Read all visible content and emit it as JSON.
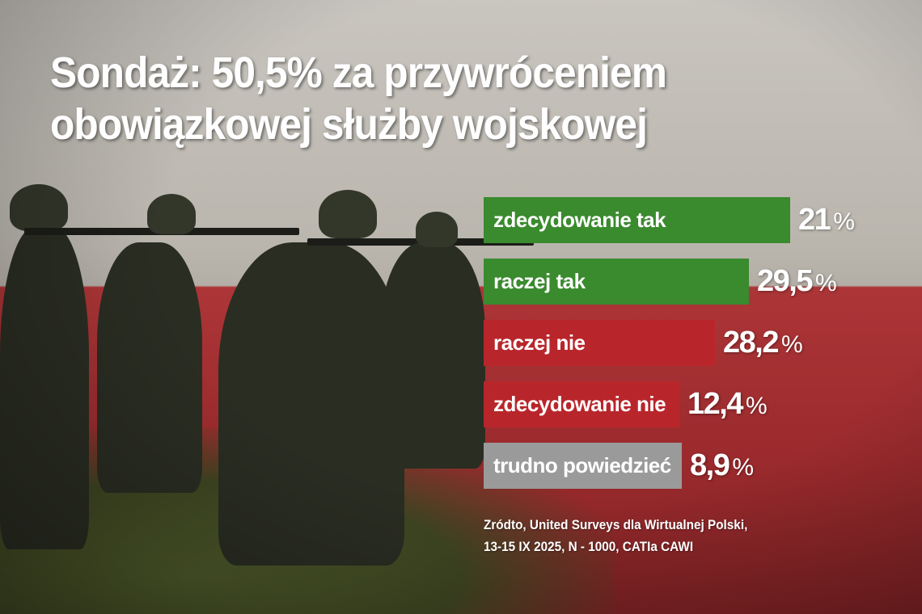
{
  "title": {
    "line1": "Sondaż: 50,5% za przywróceniem",
    "line2": "obowiązkowej służby wojskowej"
  },
  "colors": {
    "yes": "#3a8a2e",
    "no": "#b8262b",
    "unsure": "#9a9a9a",
    "background_top": "#bdb8b0",
    "background_bottom": "#a83030"
  },
  "chart_data": {
    "type": "bar",
    "orientation": "horizontal",
    "categories": [
      "zdecydowanie tak",
      "raczej tak",
      "raczej nie",
      "zdecydowanie nie",
      "trudno powiedzieć"
    ],
    "values": [
      21,
      29.5,
      28.2,
      12.4,
      8.9
    ],
    "value_labels": [
      "21",
      "29,5",
      "28,2",
      "12,4",
      "8,9"
    ],
    "unit": "%",
    "bar_colors": [
      "#3a8a2e",
      "#3a8a2e",
      "#b8262b",
      "#b8262b",
      "#9a9a9a"
    ]
  },
  "source": {
    "line1": "Zródto, United Surveys dla Wirtualnej Polski,",
    "line2": "13-15 IX 2025, N - 1000, CATIa CAWI"
  }
}
